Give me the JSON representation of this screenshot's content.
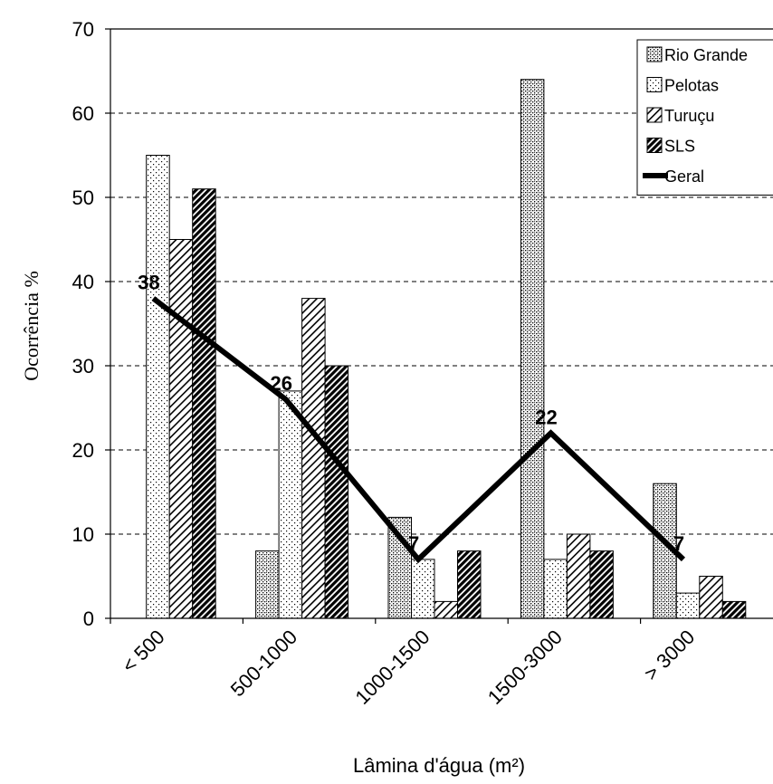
{
  "chart_data": {
    "type": "bar",
    "xlabel": "Lâmina d'água (m²)",
    "ylabel": "Ocorrência %",
    "ylim": [
      0,
      70
    ],
    "yticks": [
      0,
      10,
      20,
      30,
      40,
      50,
      60,
      70
    ],
    "grid": "horizontal-dashed",
    "legend_position": "top-right",
    "categories": [
      "< 500",
      "500-1000",
      "1000-1500",
      "1500-3000",
      "> 3000"
    ],
    "series": [
      {
        "name": "Rio Grande",
        "pattern": "dense-dots",
        "values": [
          0,
          8,
          12,
          64,
          16
        ]
      },
      {
        "name": "Pelotas",
        "pattern": "sparse-dots",
        "values": [
          55,
          27,
          7,
          7,
          3
        ]
      },
      {
        "name": "Turuçu",
        "pattern": "light-diagonal",
        "values": [
          45,
          38,
          2,
          10,
          5
        ]
      },
      {
        "name": "SLS",
        "pattern": "dark-diagonal",
        "values": [
          51,
          30,
          8,
          8,
          2
        ]
      }
    ],
    "line": {
      "name": "Geral",
      "values": [
        38,
        26,
        7,
        22,
        7
      ],
      "labels": [
        "38",
        "26",
        "7",
        "22",
        "7"
      ]
    }
  }
}
